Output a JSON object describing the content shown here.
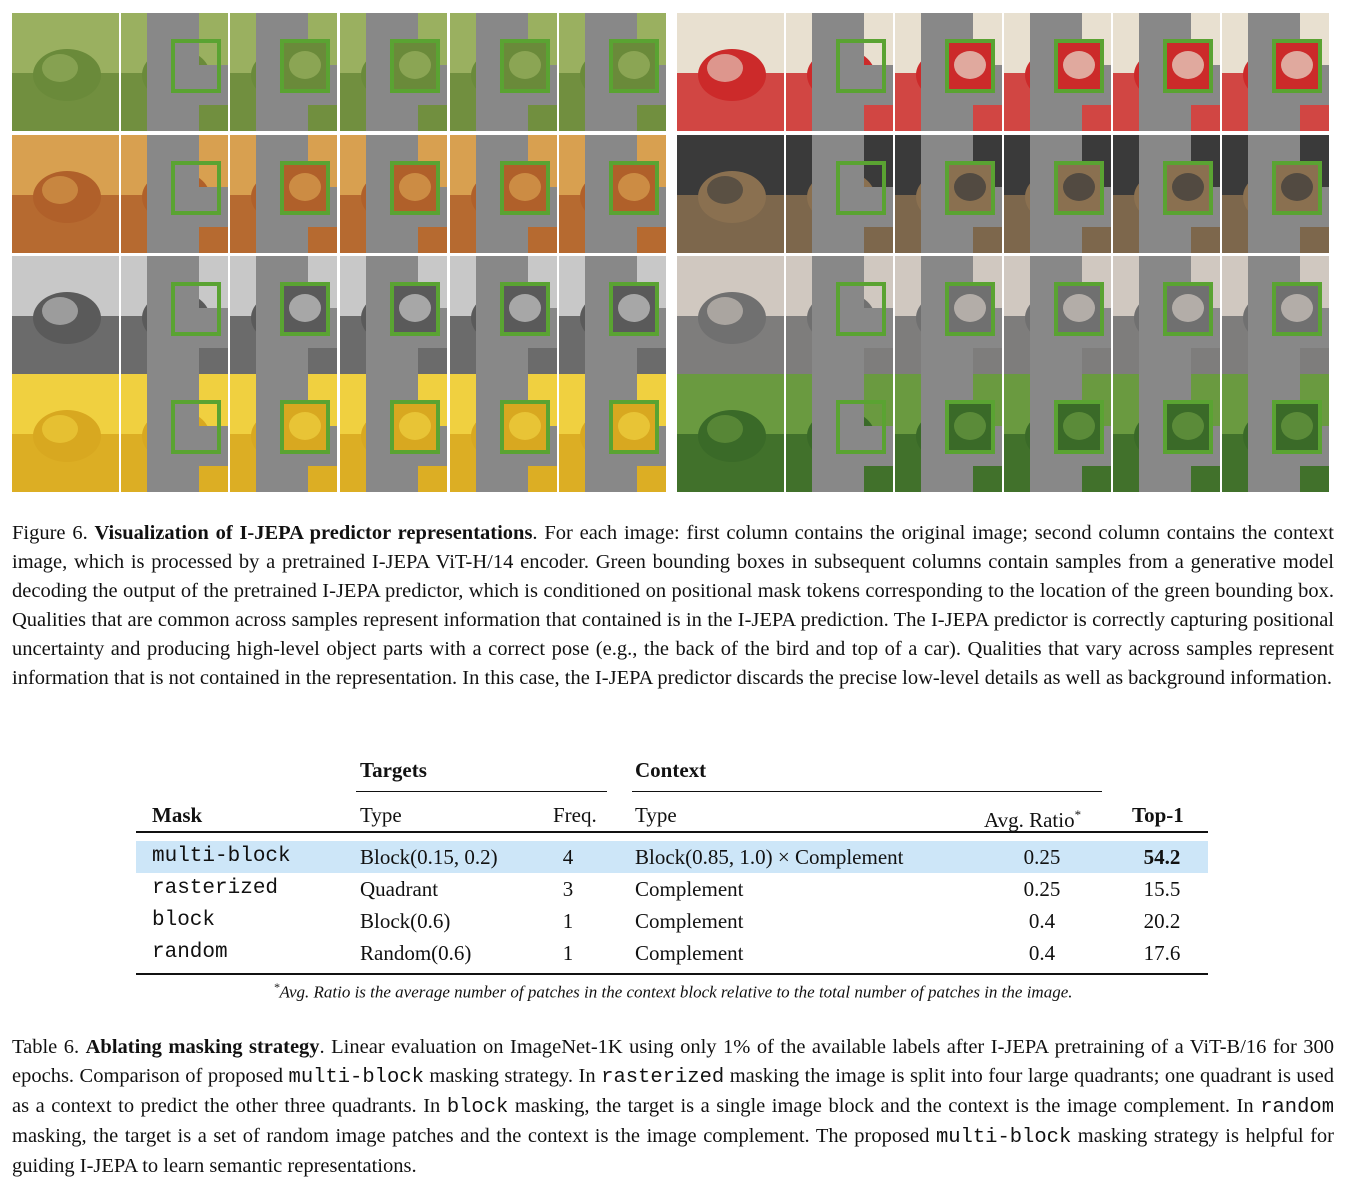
{
  "figure": {
    "caption_label": "Figure 6.",
    "caption_title": "Visualization of I-JEPA predictor representations",
    "caption_body": ". For each image: first column contains the original image; second column contains the context image, which is processed by a pretrained I-JEPA ViT-H/14 encoder. Green bounding boxes in subsequent columns contain samples from a generative model decoding the output of the pretrained I-JEPA predictor, which is conditioned on positional mask tokens corresponding to the location of the green bounding box. Qualities that are common across samples represent information that contained is in the I-JEPA prediction. The I-JEPA predictor is correctly capturing positional uncertainty and producing high-level object parts with a correct pose (e.g., the back of the bird and top of a car). Qualities that vary across samples represent information that is not contained in the representation. In this case, the I-JEPA predictor discards the precise low-level details as well as background information.",
    "colors": {
      "mask_gray": "#888888",
      "box_green": "#5aa332"
    }
  },
  "table": {
    "group_targets": "Targets",
    "group_context": "Context",
    "headers": {
      "mask": "Mask",
      "target_type": "Type",
      "freq": "Freq.",
      "context_type": "Type",
      "avg_ratio": "Avg. Ratio",
      "avg_ratio_mark": "*",
      "top1": "Top-1"
    },
    "rows": [
      {
        "mask": "multi-block",
        "target_type": "Block(0.15, 0.2)",
        "freq": "4",
        "context_type": "Block(0.85, 1.0) × Complement",
        "avg_ratio": "0.25",
        "top1": "54.2",
        "highlight": true,
        "bold_top1": true
      },
      {
        "mask": "rasterized",
        "target_type": "Quadrant",
        "freq": "3",
        "context_type": "Complement",
        "avg_ratio": "0.25",
        "top1": "15.5"
      },
      {
        "mask": "block",
        "target_type": "Block(0.6)",
        "freq": "1",
        "context_type": "Complement",
        "avg_ratio": "0.4",
        "top1": "20.2"
      },
      {
        "mask": "random",
        "target_type": "Random(0.6)",
        "freq": "1",
        "context_type": "Complement",
        "avg_ratio": "0.4",
        "top1": "17.6"
      }
    ],
    "footnote_mark": "*",
    "footnote": "Avg. Ratio is the average number of patches in the context block relative to the total number of patches in the image.",
    "highlight_color": "#cde6f8"
  },
  "table_caption": {
    "label": "Table 6.",
    "title": "Ablating masking strategy",
    "p1": ". Linear evaluation on ImageNet-1K using only 1% of the available labels after I-JEPA pretraining of a ViT-B/16 for 300 epochs. Comparison of proposed ",
    "code1": "multi-block",
    "p2": " masking strategy. In ",
    "code2": "rasterized",
    "p3": " masking the image is split into four large quadrants; one quadrant is used as a context to predict the other three quadrants. In ",
    "code3": "block",
    "p4": " masking, the target is a single image block and the context is the image complement. In ",
    "code4": "random",
    "p5": " masking, the target is a set of random image patches and the context is the image complement. The proposed ",
    "code5": "multi-block",
    "p6": " masking strategy is helpful for guiding I-JEPA to learn semantic representations."
  }
}
